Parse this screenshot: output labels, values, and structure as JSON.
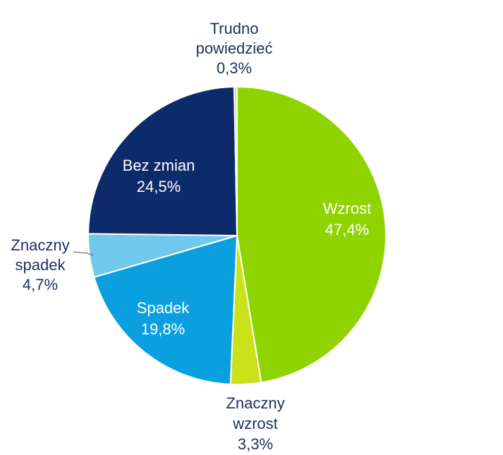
{
  "chart_data": {
    "type": "pie",
    "title": "",
    "start_angle_deg": 0,
    "direction": "clockwise",
    "slices": [
      {
        "label_lines": [
          "Wzrost"
        ],
        "value_label": "47,4%",
        "value": 47.4,
        "color": "#8fd400",
        "label_color": "#ffffff"
      },
      {
        "label_lines": [
          "Znaczny",
          "wzrost"
        ],
        "value_label": "3,3%",
        "value": 3.3,
        "color": "#c9e21a",
        "label_color": "#1f2f5a"
      },
      {
        "label_lines": [
          "Spadek"
        ],
        "value_label": "19,8%",
        "value": 19.8,
        "color": "#0aa0df",
        "label_color": "#ffffff"
      },
      {
        "label_lines": [
          "Znaczny",
          "spadek"
        ],
        "value_label": "4,7%",
        "value": 4.7,
        "color": "#70c9ec",
        "label_color": "#1f2f5a"
      },
      {
        "label_lines": [
          "Bez zmian"
        ],
        "value_label": "24,5%",
        "value": 24.5,
        "color": "#0d2b6b",
        "label_color": "#ffffff"
      },
      {
        "label_lines": [
          "Trudno",
          "powiedzieć"
        ],
        "value_label": "0,3%",
        "value": 0.3,
        "color": "#bfe36b",
        "label_color": "#1f2f5a"
      }
    ]
  }
}
